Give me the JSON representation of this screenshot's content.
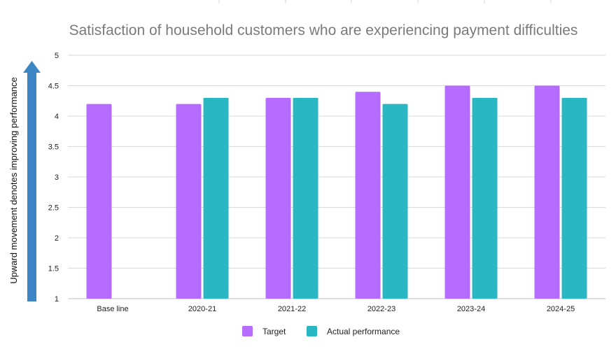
{
  "chart_data": {
    "type": "bar",
    "title": "Satisfaction of household customers who are experiencing payment difficulties",
    "side_note": "Upward movement denotes improving performance",
    "xlabel": "",
    "ylabel": "",
    "ylim": [
      1,
      5
    ],
    "yticks": [
      "1",
      "1.5",
      "2",
      "2.5",
      "3",
      "3.5",
      "4",
      "4.5",
      "5"
    ],
    "ytick_values": [
      1,
      1.5,
      2,
      2.5,
      3,
      3.5,
      4,
      4.5,
      5
    ],
    "grid": true,
    "legend_position": "bottom-center",
    "categories": [
      "Base line",
      "2020-21",
      "2021-22",
      "2022-23",
      "2023-24",
      "2024-25"
    ],
    "series": [
      {
        "name": "Target",
        "color": "#b66dff",
        "values": [
          4.2,
          4.2,
          4.3,
          4.4,
          4.5,
          4.5
        ]
      },
      {
        "name": "Actual performance",
        "color": "#2ab7c4",
        "values": [
          null,
          4.3,
          4.3,
          4.2,
          4.3,
          4.3
        ]
      }
    ],
    "arrow_color": "#3d86c6"
  }
}
